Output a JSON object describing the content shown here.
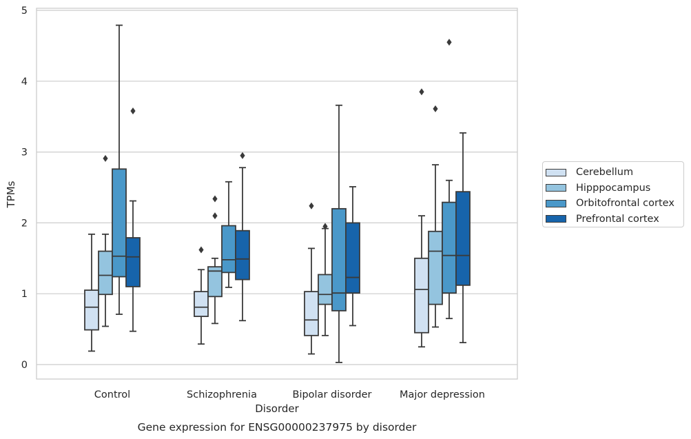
{
  "chart_data": {
    "type": "box",
    "title": "Gene expression for ENSG00000237975 by disorder",
    "xlabel": "Disorder",
    "ylabel": "TPMs",
    "ylim": [
      -0.2,
      5.05
    ],
    "yticks": [
      "0",
      "1",
      "2",
      "3",
      "4",
      "5"
    ],
    "grid": true,
    "legend_position": "right",
    "categories": [
      "Control",
      "Schizophrenia",
      "Bipolar disorder",
      "Major depression"
    ],
    "series": [
      {
        "name": "Cerebellum",
        "color": "#d0e1f2",
        "boxes": [
          {
            "whislo": 0.19,
            "q1": 0.49,
            "med": 0.81,
            "q3": 1.05,
            "whishi": 1.84,
            "fliers": []
          },
          {
            "whislo": 0.29,
            "q1": 0.68,
            "med": 0.81,
            "q3": 1.03,
            "whishi": 1.34,
            "fliers": [
              1.62
            ]
          },
          {
            "whislo": 0.15,
            "q1": 0.41,
            "med": 0.63,
            "q3": 1.03,
            "whishi": 1.64,
            "fliers": [
              2.24
            ]
          },
          {
            "whislo": 0.25,
            "q1": 0.45,
            "med": 1.06,
            "q3": 1.5,
            "whishi": 2.1,
            "fliers": [
              3.85
            ]
          }
        ]
      },
      {
        "name": "Hipppocampus",
        "color": "#94c4df",
        "boxes": [
          {
            "whislo": 0.54,
            "q1": 0.99,
            "med": 1.26,
            "q3": 1.6,
            "whishi": 1.84,
            "fliers": [
              2.91
            ]
          },
          {
            "whislo": 0.58,
            "q1": 0.96,
            "med": 1.32,
            "q3": 1.38,
            "whishi": 1.5,
            "fliers": [
              2.1,
              2.34
            ]
          },
          {
            "whislo": 0.41,
            "q1": 0.85,
            "med": 0.99,
            "q3": 1.27,
            "whishi": 1.92,
            "fliers": [
              1.95
            ]
          },
          {
            "whislo": 0.53,
            "q1": 0.85,
            "med": 1.6,
            "q3": 1.88,
            "whishi": 2.82,
            "fliers": [
              3.61
            ]
          }
        ]
      },
      {
        "name": "Orbitofrontal cortex",
        "color": "#4a98c9",
        "boxes": [
          {
            "whislo": 0.71,
            "q1": 1.24,
            "med": 1.53,
            "q3": 2.76,
            "whishi": 4.79,
            "fliers": []
          },
          {
            "whislo": 1.09,
            "q1": 1.3,
            "med": 1.48,
            "q3": 1.96,
            "whishi": 2.58,
            "fliers": []
          },
          {
            "whislo": 0.03,
            "q1": 0.76,
            "med": 1.01,
            "q3": 2.2,
            "whishi": 3.66,
            "fliers": []
          },
          {
            "whislo": 0.65,
            "q1": 1.01,
            "med": 1.54,
            "q3": 2.29,
            "whishi": 2.6,
            "fliers": [
              4.55
            ]
          }
        ]
      },
      {
        "name": "Prefrontal cortex",
        "color": "#1764ab",
        "boxes": [
          {
            "whislo": 0.47,
            "q1": 1.1,
            "med": 1.52,
            "q3": 1.79,
            "whishi": 2.31,
            "fliers": [
              3.58
            ]
          },
          {
            "whislo": 0.62,
            "q1": 1.2,
            "med": 1.49,
            "q3": 1.89,
            "whishi": 2.78,
            "fliers": [
              2.95
            ]
          },
          {
            "whislo": 0.55,
            "q1": 1.01,
            "med": 1.23,
            "q3": 2.0,
            "whishi": 2.51,
            "fliers": []
          },
          {
            "whislo": 0.31,
            "q1": 1.12,
            "med": 1.54,
            "q3": 2.44,
            "whishi": 3.27,
            "fliers": []
          }
        ]
      }
    ]
  }
}
